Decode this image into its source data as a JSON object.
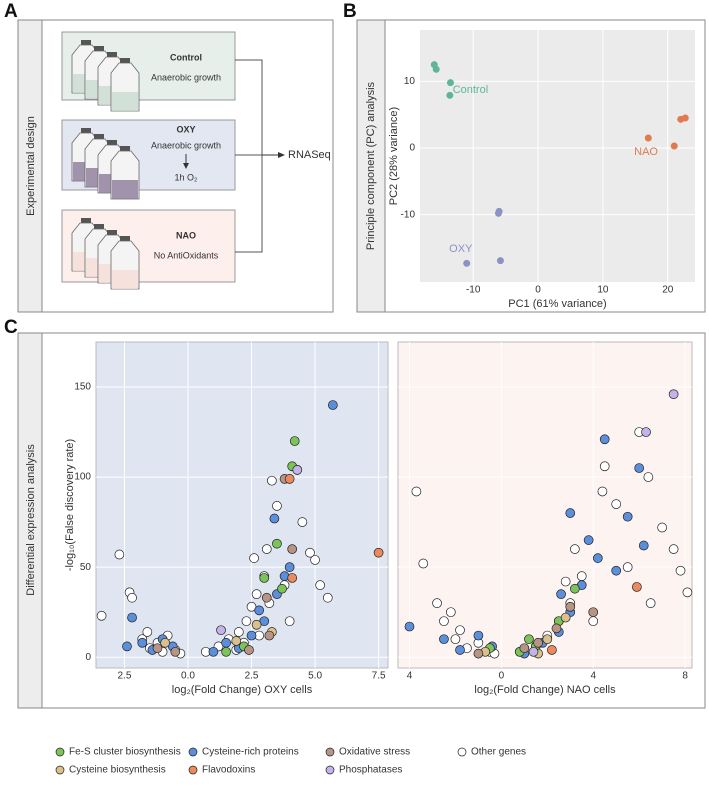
{
  "panel_a": {
    "label": "A",
    "side_label": "Experimental design",
    "boxes": [
      {
        "title": "Control",
        "subtitle": "Anaerobic growth"
      },
      {
        "title": "OXY",
        "subtitle": "Anaerobic growth",
        "note": "1h O₂"
      },
      {
        "title": "NAO",
        "subtitle": "No AntiOxidants"
      }
    ],
    "output": "RNASeq"
  },
  "panel_c": {
    "label": "C",
    "side_label": "Differential expression analysis"
  },
  "chart_data": [
    {
      "type": "scatter",
      "panel": "B",
      "side_label": "Principle component (PC) analysis",
      "x_label": "PC1 (61% variance)",
      "y_label": "PC2 (28% variance)",
      "xlim": [
        -18.2,
        24.2
      ],
      "ylim": [
        -20.1,
        17.7
      ],
      "xticks": [
        -10,
        0,
        10,
        20
      ],
      "yticks": [
        -10,
        0,
        10
      ],
      "grid": true,
      "series": [
        {
          "name": "Control",
          "color": "#5fb59a",
          "x": [
            -16,
            -15.7,
            -13.5,
            -13.6
          ],
          "values": [
            12.5,
            11.8,
            9.8,
            7.9
          ]
        },
        {
          "name": "NAO",
          "color": "#e07a4f",
          "x": [
            17,
            21,
            22,
            22.7
          ],
          "values": [
            1.5,
            0.3,
            4.3,
            4.5
          ]
        },
        {
          "name": "OXY",
          "color": "#8a93c4",
          "x": [
            -6,
            -5.8,
            -11,
            -6.1
          ],
          "values": [
            -9.5,
            -16.9,
            -17.3,
            -9.8
          ]
        }
      ]
    },
    {
      "type": "scatter",
      "x_label": "log₂(Fold Change) OXY cells",
      "y_label": "-log₁₀(False discovery rate)",
      "background": "#dfe5f1",
      "xlim": [
        -3.62,
        7.87
      ],
      "ylim": [
        -6,
        175
      ],
      "xticks": [
        {
          "value": -2.5,
          "label": "2.5"
        },
        {
          "value": 0,
          "label": "0.0"
        },
        2.5,
        {
          "value": 5,
          "label": "5.0"
        },
        7.5
      ],
      "yticks": [
        0,
        50,
        100,
        150
      ],
      "grid": true,
      "series": [
        {
          "name": "Fe-S cluster biosynthesis",
          "color": "#7cc35a",
          "x": [
            4.2,
            4.1,
            3.5,
            3.7,
            3.0,
            1.5,
            2.2
          ],
          "values": [
            120,
            106,
            63,
            38,
            44,
            3,
            6
          ]
        },
        {
          "name": "Cysteine biosynthesis",
          "color": "#d9c08c",
          "x": [
            -0.9,
            2.7,
            3.3,
            1.9
          ],
          "values": [
            8,
            18,
            14,
            9
          ]
        },
        {
          "name": "Cysteine-rich proteins",
          "color": "#5b8fdb",
          "x": [
            -2.2,
            -1.8,
            -1.4,
            -1,
            -0.6,
            -2.4,
            1,
            1.5,
            2,
            2.5,
            3,
            3.5,
            3.8,
            4,
            5.7,
            4.3,
            3.4,
            2.8
          ],
          "values": [
            22,
            8,
            4,
            10,
            6,
            6,
            3,
            8,
            5,
            12,
            20,
            35,
            45,
            50,
            140,
            104,
            77,
            26
          ]
        },
        {
          "name": "Flavodoxins",
          "color": "#ec8a5d",
          "x": [
            4,
            7.5,
            4.1
          ],
          "values": [
            99,
            58,
            44
          ]
        },
        {
          "name": "Oxidative stress",
          "color": "#b89484",
          "x": [
            -0.5,
            -1.2,
            2.4,
            3.2,
            3.8,
            4.1,
            3.1
          ],
          "values": [
            3,
            5,
            4,
            12,
            99,
            60,
            33
          ]
        },
        {
          "name": "Phosphatases",
          "color": "#c4b3e8",
          "x": [
            1.3,
            4.3
          ],
          "values": [
            15,
            104
          ]
        },
        {
          "name": "Other genes",
          "color": "#ffffff",
          "x": [
            -3.4,
            -2.7,
            -2.3,
            -2.2,
            -1.8,
            -1.5,
            -1.2,
            -1,
            -0.8,
            -0.5,
            -0.3,
            -1.6,
            0.7,
            1.2,
            1.6,
            2,
            2.3,
            2.5,
            2.7,
            3,
            3.2,
            3.5,
            3.3,
            4,
            4.5,
            5,
            5.2,
            5.5,
            4.8,
            3.8,
            2.2,
            2.8,
            1.9,
            3.1,
            2.6
          ],
          "values": [
            23,
            57,
            36,
            33,
            10,
            5,
            8,
            3,
            12,
            4,
            2,
            14,
            3,
            6,
            10,
            14,
            20,
            28,
            35,
            45,
            30,
            84,
            98,
            20,
            75,
            54,
            40,
            33,
            58,
            40,
            8,
            12,
            4,
            60,
            55
          ]
        }
      ]
    },
    {
      "type": "scatter",
      "x_label": "log₂(Fold Change) NAO cells",
      "background": "#fdf3f1",
      "xlim": [
        -4.5,
        8.3
      ],
      "ylim": [
        -6,
        175
      ],
      "xticks": [
        {
          "value": -4,
          "label": "4"
        },
        0,
        4,
        8
      ],
      "yticks": [
        0,
        50,
        100,
        150
      ],
      "grid": true,
      "series": [
        {
          "color": "#7cc35a",
          "x": [
            -0.5,
            1.5,
            2.5,
            3.2,
            1.2,
            0.8
          ],
          "values": [
            5,
            6,
            20,
            38,
            10,
            3
          ]
        },
        {
          "color": "#d9c08c",
          "x": [
            -0.7,
            2,
            2.8,
            1.6
          ],
          "values": [
            3,
            10,
            22,
            2
          ]
        },
        {
          "color": "#5b8fdb",
          "x": [
            -4,
            -2.5,
            -1.8,
            -1,
            -0.4,
            1,
            1.8,
            2.5,
            3,
            3.5,
            3.8,
            4.5,
            6,
            5.5,
            4.2,
            5,
            6.2,
            3,
            2.6
          ],
          "values": [
            17,
            10,
            4,
            12,
            6,
            2,
            8,
            14,
            25,
            40,
            65,
            121,
            105,
            78,
            55,
            48,
            62,
            80,
            35
          ]
        },
        {
          "color": "#ec8a5d",
          "x": [
            5.9,
            2.2
          ],
          "values": [
            39,
            4
          ]
        },
        {
          "color": "#b89484",
          "x": [
            -1,
            1.6,
            2.4,
            3,
            4,
            1
          ],
          "values": [
            2,
            8,
            16,
            28,
            25,
            5
          ]
        },
        {
          "color": "#c4b3e8",
          "x": [
            7.5,
            6.3,
            1.4
          ],
          "values": [
            146,
            125,
            3
          ]
        },
        {
          "color": "#ffffff",
          "x": [
            -3.7,
            -3.4,
            -2.8,
            -2.5,
            -2,
            -1.5,
            -1,
            -0.5,
            -0.3,
            -1.8,
            -2.2,
            0.8,
            1.5,
            2,
            2.5,
            3,
            3.5,
            4.5,
            4.4,
            5,
            6,
            6.4,
            7,
            7.5,
            8.1,
            7.8,
            5.5,
            4,
            6.5,
            2.8,
            3.2
          ],
          "values": [
            92,
            52,
            30,
            20,
            10,
            5,
            8,
            3,
            2,
            15,
            25,
            3,
            6,
            12,
            20,
            30,
            45,
            106,
            92,
            85,
            125,
            100,
            72,
            60,
            36,
            48,
            50,
            20,
            30,
            42,
            60
          ]
        }
      ]
    }
  ]
}
